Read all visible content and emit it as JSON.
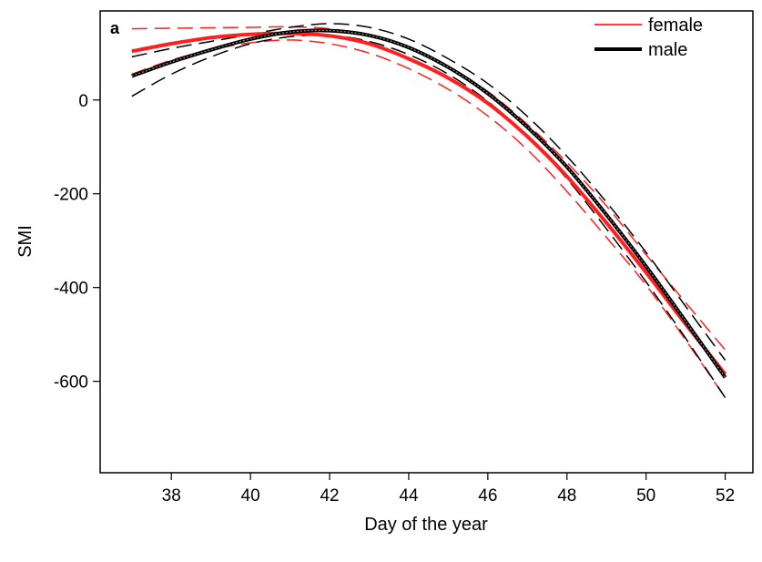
{
  "chart_data": {
    "type": "line",
    "panel_label": "a",
    "xlabel": "Day of the year",
    "ylabel": "SMI",
    "xlim": [
      36.2,
      52.7
    ],
    "ylim": [
      -795,
      190
    ],
    "x_ticks": [
      38,
      40,
      42,
      44,
      46,
      48,
      50,
      52
    ],
    "y_ticks": [
      0,
      -200,
      -400,
      -600
    ],
    "grid": false,
    "legend": {
      "placement": "top-right",
      "entries": [
        {
          "label": "female",
          "color": "#ff1f1f",
          "width": "thin"
        },
        {
          "label": "male",
          "color": "#000000",
          "width": "thick"
        }
      ]
    },
    "x": [
      37,
      38,
      39,
      40,
      41,
      42,
      43,
      44,
      45,
      46,
      47,
      48,
      49,
      50,
      51,
      52
    ],
    "series": [
      {
        "name": "female",
        "color": "#ff1f1f",
        "fit": [
          104,
          120,
          133,
          140,
          142,
          137,
          120,
          88,
          47,
          -7,
          -78,
          -163,
          -262,
          -368,
          -478,
          -585
        ],
        "lower": [
          55,
          85,
          107,
          122,
          128,
          120,
          100,
          67,
          23,
          -34,
          -106,
          -195,
          -293,
          -395,
          -512,
          -635
        ],
        "upper": [
          152,
          153,
          154,
          155,
          156,
          152,
          138,
          110,
          70,
          18,
          -52,
          -133,
          -226,
          -330,
          -432,
          -533
        ]
      },
      {
        "name": "male",
        "color": "#000000",
        "fit": [
          51,
          81,
          107,
          130,
          145,
          148,
          138,
          112,
          70,
          14,
          -58,
          -143,
          -245,
          -355,
          -472,
          -592
        ],
        "lower": [
          8,
          55,
          92,
          120,
          135,
          138,
          125,
          97,
          55,
          -3,
          -78,
          -168,
          -275,
          -388,
          -508,
          -635
        ],
        "upper": [
          92,
          110,
          125,
          140,
          155,
          163,
          155,
          130,
          88,
          35,
          -35,
          -120,
          -218,
          -325,
          -440,
          -555
        ]
      }
    ]
  }
}
